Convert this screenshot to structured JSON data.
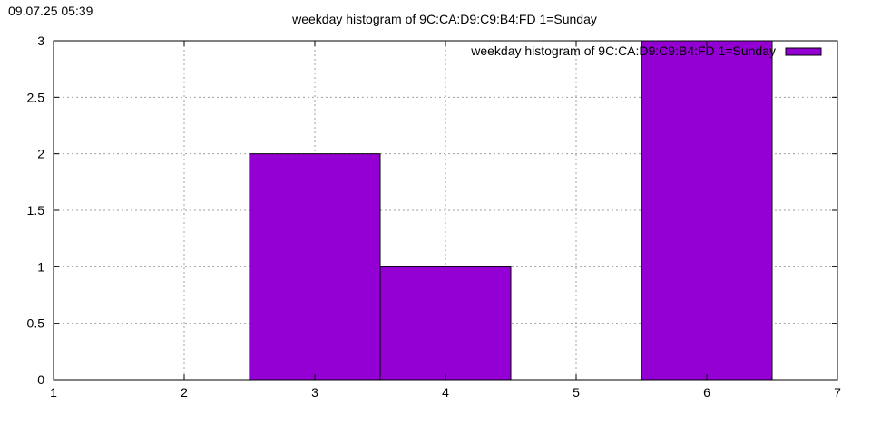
{
  "timestamp": "09.07.25 05:39",
  "colors": {
    "bar_fill": "#9400d3",
    "grid": "#a0a0a0"
  },
  "chart_data": {
    "type": "bar",
    "title": "weekday histogram of 9C:CA:D9:C9:B4:FD 1=Sunday",
    "legend": {
      "label": "weekday histogram of 9C:CA:D9:C9:B4:FD 1=Sunday",
      "placement": "top-right"
    },
    "xlabel": "",
    "ylabel": "",
    "xlim": [
      1,
      7
    ],
    "ylim": [
      0,
      3
    ],
    "x_ticks": [
      "1",
      "2",
      "3",
      "4",
      "5",
      "6",
      "7"
    ],
    "y_ticks": [
      "0",
      "0.5",
      "1",
      "1.5",
      "2",
      "2.5",
      "3"
    ],
    "grid": true,
    "bar_width": 1,
    "x": [
      3,
      4,
      6
    ],
    "values": [
      2,
      1,
      3
    ]
  }
}
